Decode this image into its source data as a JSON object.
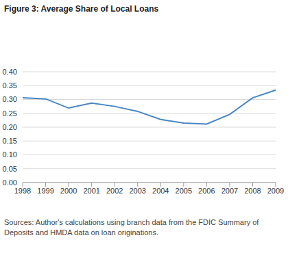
{
  "chart_data": {
    "type": "line",
    "title": "Figure 3: Average Share of Local Loans",
    "source": "Sources: Author's calculations using branch data from the FDIC Summary of Deposits and HMDA data on loan originations.",
    "categories": [
      "1998",
      "1999",
      "2000",
      "2001",
      "2002",
      "2003",
      "2004",
      "2005",
      "2006",
      "2007",
      "2008",
      "2009"
    ],
    "values": [
      0.306,
      0.302,
      0.269,
      0.287,
      0.275,
      0.257,
      0.228,
      0.215,
      0.211,
      0.246,
      0.306,
      0.334
    ],
    "color": "#4a86c5",
    "ylim": [
      0,
      0.4
    ],
    "yticks": [
      {
        "value": 0,
        "label": "0.00"
      },
      0.05,
      {
        "value": 0.1,
        "label": "0.10"
      },
      0.15,
      {
        "value": 0.2,
        "label": "0.20"
      },
      0.25,
      {
        "value": 0.3,
        "label": "0.30"
      },
      0.35,
      {
        "value": 0.4,
        "label": "0.40"
      }
    ],
    "grid": true
  }
}
